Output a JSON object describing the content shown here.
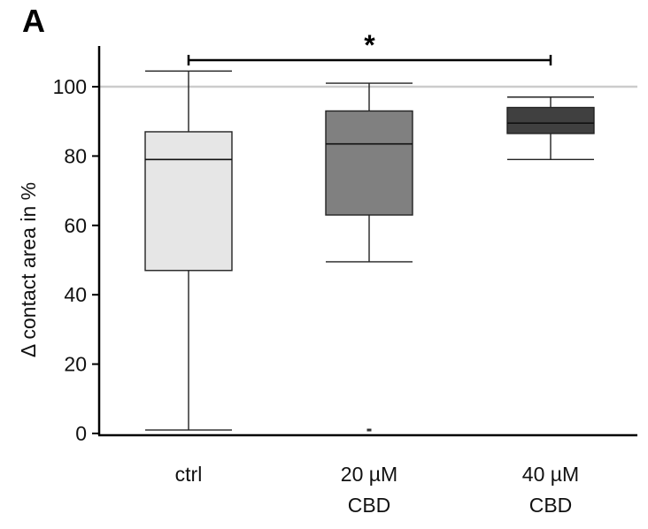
{
  "panel_label": "A",
  "chart_data": {
    "type": "box",
    "title": "",
    "xlabel": "",
    "ylabel": "Δ contact area in %",
    "ylim": [
      0,
      110
    ],
    "yticks": [
      0,
      20,
      40,
      60,
      80,
      100
    ],
    "reference_line": {
      "y": 100,
      "color": "#cccccc"
    },
    "categories": [
      {
        "lines": [
          "ctrl"
        ]
      },
      {
        "lines": [
          "20 µM",
          "CBD"
        ]
      },
      {
        "lines": [
          "40 µM",
          "CBD"
        ]
      }
    ],
    "boxes": [
      {
        "name": "ctrl",
        "min": 1,
        "q1": 47,
        "median": 79,
        "q3": 87,
        "max": 104.5,
        "fill": "#e6e6e6",
        "outliers": []
      },
      {
        "name": "20 µM CBD",
        "min": 49.5,
        "q1": 63,
        "median": 83.5,
        "q3": 93,
        "max": 101,
        "fill": "#808080",
        "outliers": [
          1
        ]
      },
      {
        "name": "40 µM CBD",
        "min": 79,
        "q1": 86.5,
        "median": 89.5,
        "q3": 94,
        "max": 97,
        "fill": "#404040",
        "outliers": []
      }
    ],
    "significance": {
      "from": 0,
      "to": 2,
      "y": 108,
      "label": "*"
    }
  }
}
